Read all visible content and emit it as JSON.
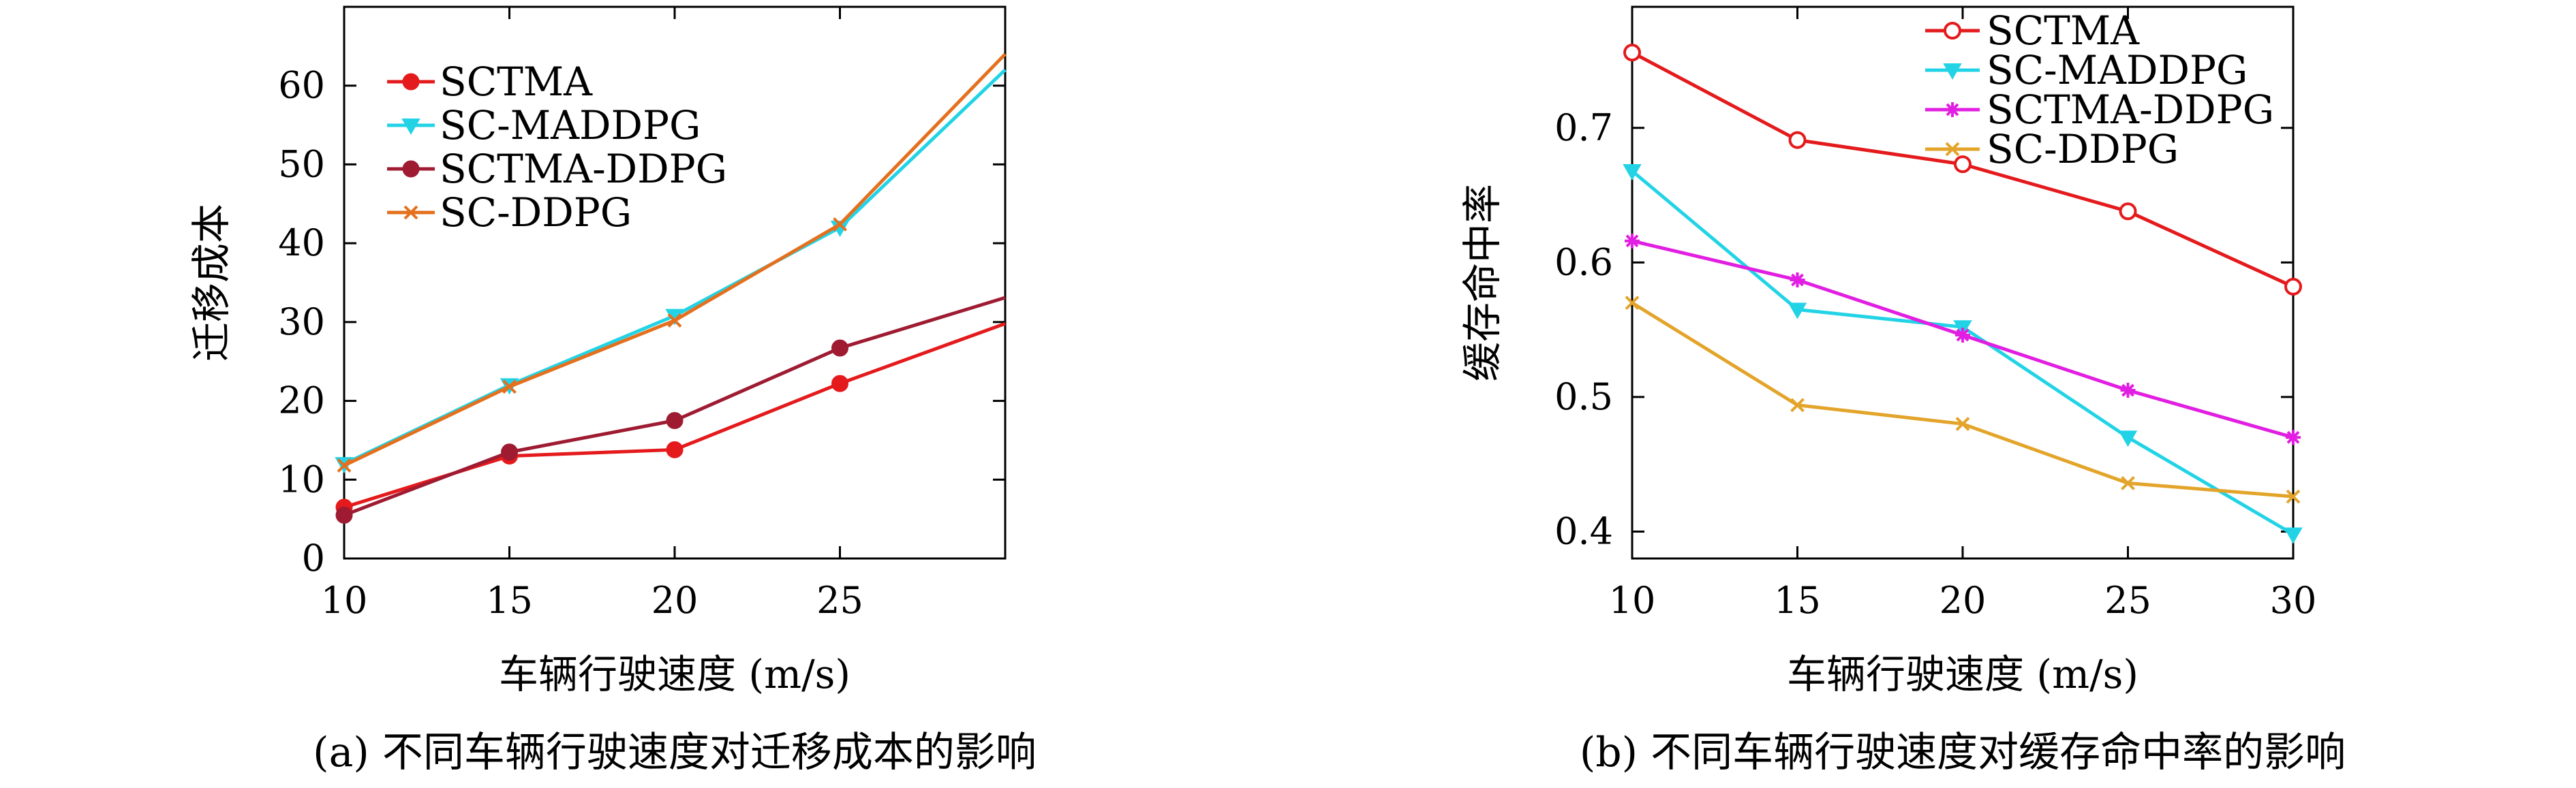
{
  "chart_data": [
    {
      "type": "line",
      "caption": "(a) 不同车辆行驶速度对迁移成本的影响",
      "xlabel": "车辆行驶速度 (m/s)",
      "ylabel": "迁移成本",
      "x": [
        10,
        15,
        20,
        25,
        30
      ],
      "x_ticks": [
        10,
        15,
        20,
        25
      ],
      "y_ticks": [
        0,
        10,
        20,
        30,
        40,
        50,
        60
      ],
      "xlim": [
        10,
        30
      ],
      "ylim": [
        0,
        70
      ],
      "grid": false,
      "legend_position": "top-left",
      "series": [
        {
          "name": "SCTMA",
          "color": "#e41a1c",
          "marker": "circle-filled",
          "values": [
            6.5,
            13.0,
            13.8,
            22.2,
            29.8
          ]
        },
        {
          "name": "SC-MADDPG",
          "color": "#22d3e6",
          "marker": "triangle-down",
          "values": [
            12.0,
            22.0,
            30.8,
            42.0,
            62.0
          ]
        },
        {
          "name": "SCTMA-DDPG",
          "color": "#9e1b32",
          "marker": "circle-filled",
          "values": [
            5.5,
            13.5,
            17.5,
            26.7,
            33.1
          ]
        },
        {
          "name": "SC-DDPG",
          "color": "#e4701e",
          "marker": "x",
          "values": [
            11.8,
            21.8,
            30.2,
            42.4,
            64.0
          ]
        }
      ]
    },
    {
      "type": "line",
      "caption": "(b) 不同车辆行驶速度对缓存命中率的影响",
      "xlabel": "车辆行驶速度 (m/s)",
      "ylabel": "缓存命中率",
      "x": [
        10,
        15,
        20,
        25,
        30
      ],
      "x_ticks": [
        10,
        15,
        20,
        25,
        30
      ],
      "y_ticks": [
        0.4,
        0.5,
        0.6,
        0.7
      ],
      "xlim": [
        10,
        30
      ],
      "ylim": [
        0.38,
        0.79
      ],
      "grid": false,
      "legend_position": "top-right",
      "series": [
        {
          "name": "SCTMA",
          "color": "#e41a1c",
          "marker": "circle-open",
          "values": [
            0.756,
            0.691,
            0.673,
            0.638,
            0.582
          ]
        },
        {
          "name": "SC-MADDPG",
          "color": "#22d3e6",
          "marker": "triangle-down",
          "values": [
            0.668,
            0.565,
            0.552,
            0.47,
            0.398
          ]
        },
        {
          "name": "SCTMA-DDPG",
          "color": "#e11ee1",
          "marker": "star",
          "values": [
            0.616,
            0.587,
            0.546,
            0.505,
            0.47
          ]
        },
        {
          "name": "SC-DDPG",
          "color": "#e3a42a",
          "marker": "x",
          "values": [
            0.57,
            0.494,
            0.48,
            0.436,
            0.426
          ]
        }
      ]
    }
  ]
}
